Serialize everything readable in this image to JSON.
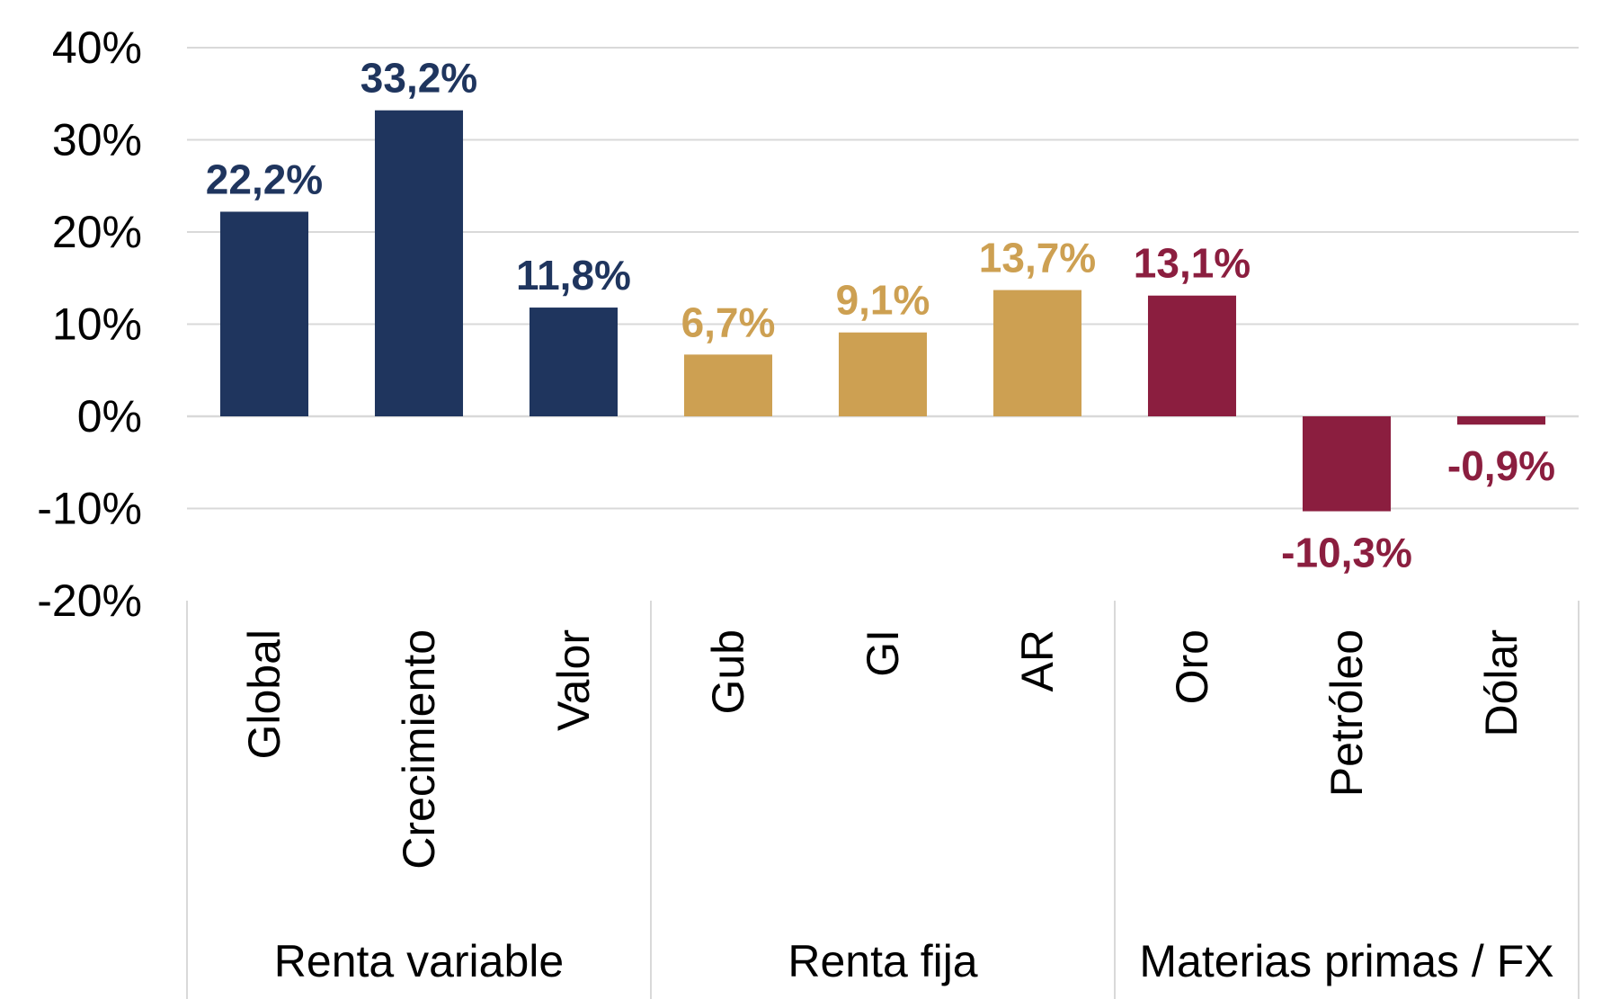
{
  "chart_data": {
    "type": "bar",
    "title": "",
    "xlabel": "",
    "ylabel": "",
    "ylim": [
      -20,
      40
    ],
    "yticks": [
      40,
      30,
      20,
      10,
      0,
      -10,
      -20
    ],
    "ytick_labels": [
      "40%",
      "30%",
      "20%",
      "10%",
      "0%",
      "-10%",
      "-20%"
    ],
    "grid": true,
    "legend": "none",
    "categories": [
      "Global",
      "Crecimiento",
      "Valor",
      "Gub",
      "GI",
      "AR",
      "Oro",
      "Petróleo",
      "Dólar"
    ],
    "values": [
      22.2,
      33.2,
      11.8,
      6.7,
      9.1,
      13.7,
      13.1,
      -10.3,
      -0.9
    ],
    "data_labels": [
      "22,2%",
      "33,2%",
      "11,8%",
      "6,7%",
      "9,1%",
      "13,7%",
      "13,1%",
      "-10,3%",
      "-0,9%"
    ],
    "groups": [
      {
        "name": "Renta variable",
        "categories": [
          "Global",
          "Crecimiento",
          "Valor"
        ],
        "color": "#1f355e"
      },
      {
        "name": "Renta fija",
        "categories": [
          "Gub",
          "GI",
          "AR"
        ],
        "color": "#cda052"
      },
      {
        "name": "Materias primas / FX",
        "categories": [
          "Oro",
          "Petróleo",
          "Dólar"
        ],
        "color": "#8b1e3f"
      }
    ]
  }
}
